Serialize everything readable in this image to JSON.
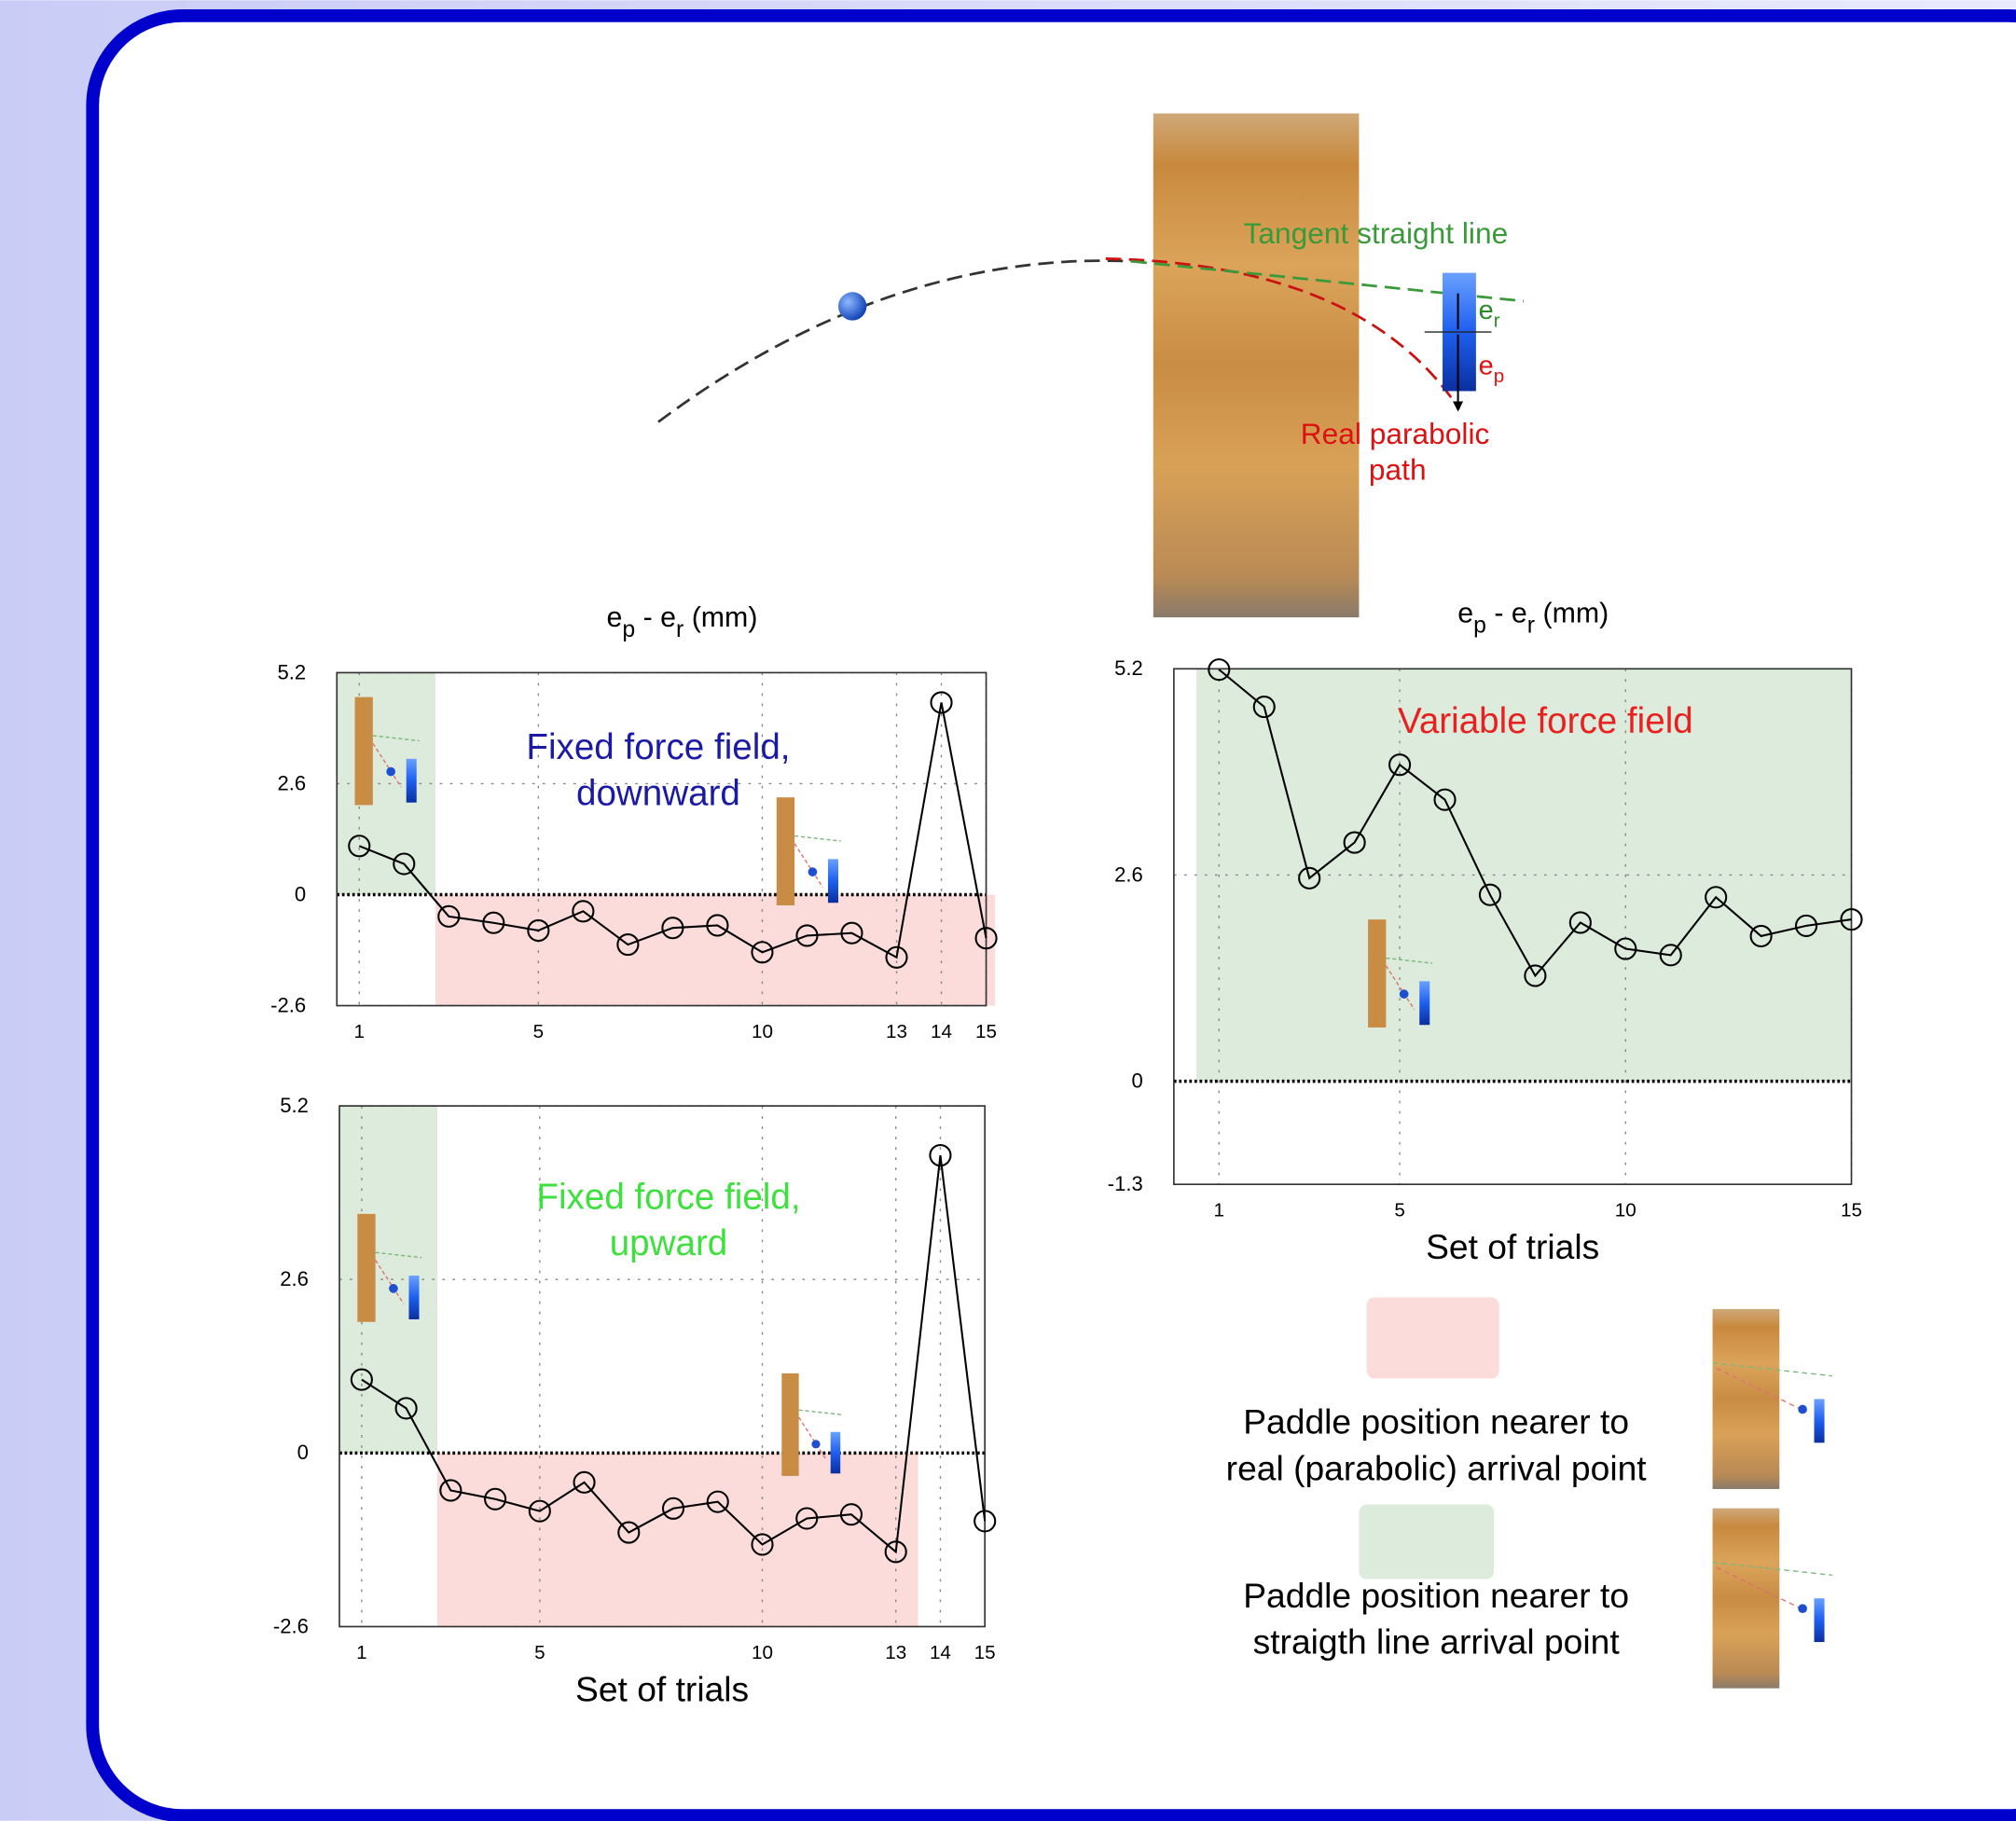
{
  "chart_data": [
    {
      "type": "line",
      "title": [
        "e",
        "p",
        " - e",
        "r",
        " (mm)"
      ],
      "annotation": [
        "Fixed force field,",
        "downward"
      ],
      "annotation_color": "#1a1aa6",
      "x": [
        1,
        2,
        3,
        4,
        5,
        6,
        7,
        8,
        9,
        10,
        11,
        12,
        13,
        14,
        15
      ],
      "series": [
        {
          "color": "#000000",
          "values": [
            1.14,
            0.72,
            -0.51,
            -0.66,
            -0.84,
            -0.39,
            -1.17,
            -0.78,
            -0.72,
            -1.35,
            -0.96,
            -0.9,
            -1.47,
            4.5,
            -1.02
          ]
        }
      ],
      "xlim": [
        0.5,
        15
      ],
      "ylim": [
        -2.6,
        5.2
      ],
      "xticks": [
        1,
        5,
        10,
        13,
        14,
        15
      ],
      "yticks": [
        -2.6,
        0,
        2.6,
        5.2
      ],
      "grid": true,
      "zero_line": true,
      "shaded": [
        {
          "x": [
            0.5,
            2.7
          ],
          "y": [
            0,
            5.2
          ],
          "color": "#dcebdb"
        },
        {
          "x": [
            2.7,
            15.2
          ],
          "y": [
            -2.6,
            0
          ],
          "color": "#fbdcda"
        }
      ]
    },
    {
      "type": "line",
      "annotation": [
        "Fixed force field,",
        "upward"
      ],
      "annotation_color": "#3ee03e",
      "x_label": "Set of trials",
      "x": [
        1,
        2,
        3,
        4,
        5,
        6,
        7,
        8,
        9,
        10,
        11,
        12,
        13,
        14,
        15
      ],
      "series": [
        {
          "color": "#000000",
          "values": [
            1.1,
            0.67,
            -0.56,
            -0.69,
            -0.87,
            -0.44,
            -1.19,
            -0.83,
            -0.73,
            -1.37,
            -0.98,
            -0.92,
            -1.48,
            4.46,
            -1.02
          ]
        }
      ],
      "xlim": [
        0.5,
        15
      ],
      "ylim": [
        -2.6,
        5.2
      ],
      "xticks": [
        1,
        5,
        10,
        13,
        14,
        15
      ],
      "yticks": [
        -2.6,
        0,
        2.6,
        5.2
      ],
      "grid": true,
      "zero_line": true,
      "shaded": [
        {
          "x": [
            0.5,
            2.7
          ],
          "y": [
            0,
            5.2
          ],
          "color": "#dcebdb"
        },
        {
          "x": [
            2.7,
            13.5
          ],
          "y": [
            -2.6,
            0
          ],
          "color": "#fbdcda"
        }
      ]
    },
    {
      "type": "line",
      "title": [
        "e",
        "p",
        " - e",
        "r",
        " (mm)"
      ],
      "annotation": [
        "Variable force field"
      ],
      "annotation_color": "#e82020",
      "x_label": "Set of trials",
      "x": [
        1,
        2,
        3,
        4,
        5,
        6,
        7,
        8,
        9,
        10,
        11,
        12,
        13,
        14,
        15
      ],
      "series": [
        {
          "color": "#000000",
          "values": [
            5.19,
            4.72,
            2.56,
            3.01,
            3.99,
            3.55,
            2.35,
            1.33,
            2.0,
            1.67,
            1.59,
            2.32,
            1.83,
            1.96,
            2.04
          ]
        }
      ],
      "xlim": [
        0,
        15
      ],
      "ylim": [
        -1.3,
        5.2
      ],
      "xticks": [
        1,
        5,
        10,
        15
      ],
      "yticks": [
        -1.3,
        0,
        2.6,
        5.2
      ],
      "grid": true,
      "zero_line": true,
      "shaded": [
        {
          "x": [
            0.5,
            15
          ],
          "y": [
            0,
            5.2
          ],
          "color": "#dcebdb"
        }
      ]
    }
  ],
  "diagram": {
    "tangent_label": "Tangent straight line",
    "er": [
      "e",
      "r"
    ],
    "ep": [
      "e",
      "p"
    ],
    "parabolic_label": [
      "Real parabolic",
      "path"
    ]
  },
  "legend": {
    "items": [
      {
        "color": "#fbdcda",
        "label": [
          "Paddle position nearer to",
          "real (parabolic) arrival point"
        ]
      },
      {
        "color": "#dcebdb",
        "label": [
          "Paddle position nearer to",
          "straigth line arrival point"
        ]
      }
    ]
  }
}
